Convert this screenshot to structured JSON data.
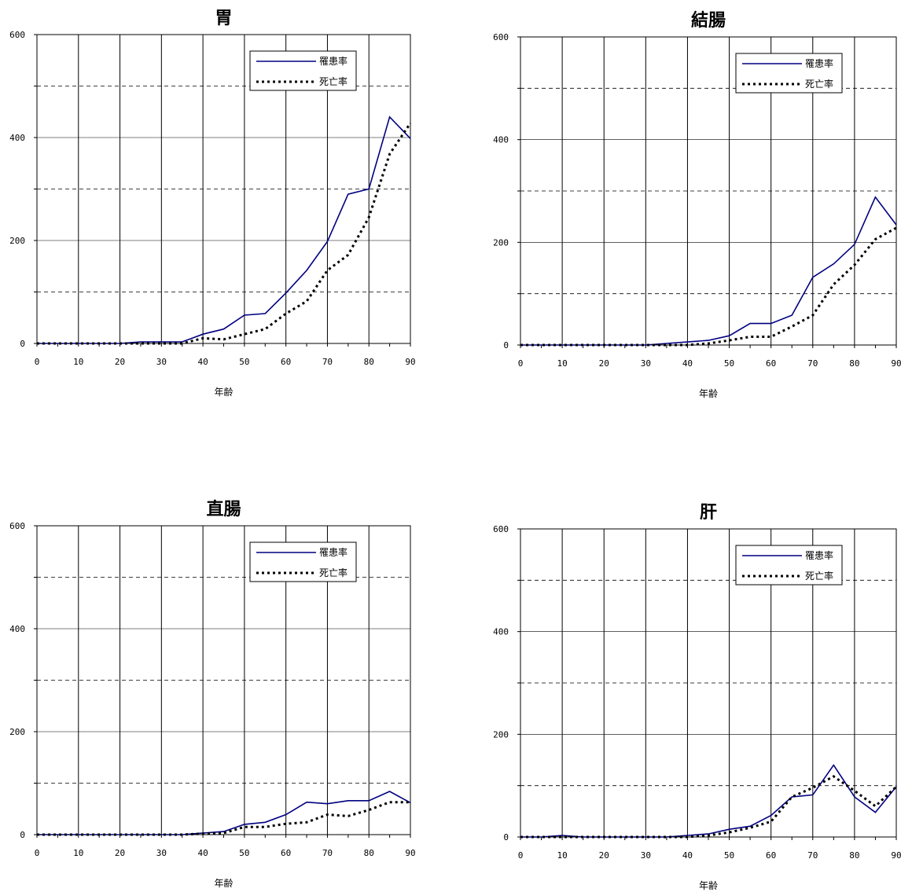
{
  "chart_data": [
    {
      "type": "line",
      "title": "胃",
      "xlabel": "年齢",
      "ylabel": "",
      "xlim": [
        0,
        90
      ],
      "ylim": [
        0,
        600
      ],
      "x_ticks": [
        "0",
        "10",
        "20",
        "30",
        "40",
        "50",
        "60",
        "70",
        "80",
        "90"
      ],
      "y_ticks": [
        "0",
        "200",
        "400",
        "600"
      ],
      "grid": true,
      "legend_position": "top-right",
      "series": [
        {
          "name": "罹患率",
          "style": "solid",
          "color": "#000080",
          "x": [
            0,
            5,
            10,
            15,
            20,
            25,
            30,
            35,
            40,
            45,
            50,
            55,
            60,
            65,
            70,
            75,
            80,
            85,
            90
          ],
          "y": [
            0,
            0,
            0,
            0,
            0,
            3,
            3,
            3,
            18,
            28,
            55,
            58,
            98,
            142,
            198,
            290,
            300,
            440,
            398
          ]
        },
        {
          "name": "死亡率",
          "style": "dotted",
          "color": "#000000",
          "x": [
            0,
            5,
            10,
            15,
            20,
            25,
            30,
            35,
            40,
            45,
            50,
            55,
            60,
            65,
            70,
            75,
            80,
            85,
            90
          ],
          "y": [
            0,
            0,
            0,
            0,
            0,
            0,
            0,
            0,
            10,
            8,
            18,
            28,
            58,
            82,
            142,
            172,
            245,
            368,
            428
          ]
        }
      ]
    },
    {
      "type": "line",
      "title": "結腸",
      "xlabel": "年齢",
      "ylabel": "",
      "xlim": [
        0,
        90
      ],
      "ylim": [
        0,
        600
      ],
      "x_ticks": [
        "0",
        "10",
        "20",
        "30",
        "40",
        "50",
        "60",
        "70",
        "80",
        "90"
      ],
      "y_ticks": [
        "0",
        "200",
        "400",
        "600"
      ],
      "grid": true,
      "legend_position": "top-right",
      "series": [
        {
          "name": "罹患率",
          "style": "solid",
          "color": "#000080",
          "x": [
            0,
            5,
            10,
            15,
            20,
            25,
            30,
            35,
            40,
            45,
            50,
            55,
            60,
            65,
            70,
            75,
            80,
            85,
            90
          ],
          "y": [
            0,
            0,
            0,
            0,
            0,
            0,
            0,
            3,
            6,
            9,
            18,
            42,
            42,
            58,
            132,
            158,
            196,
            288,
            234
          ]
        },
        {
          "name": "死亡率",
          "style": "dotted",
          "color": "#000000",
          "x": [
            0,
            5,
            10,
            15,
            20,
            25,
            30,
            35,
            40,
            45,
            50,
            55,
            60,
            65,
            70,
            75,
            80,
            85,
            90
          ],
          "y": [
            0,
            0,
            0,
            0,
            0,
            0,
            0,
            0,
            0,
            3,
            9,
            16,
            16,
            36,
            58,
            118,
            156,
            206,
            228
          ]
        }
      ]
    },
    {
      "type": "line",
      "title": "直腸",
      "xlabel": "年齢",
      "ylabel": "",
      "xlim": [
        0,
        90
      ],
      "ylim": [
        0,
        600
      ],
      "x_ticks": [
        "0",
        "10",
        "20",
        "30",
        "40",
        "50",
        "60",
        "70",
        "80",
        "90"
      ],
      "y_ticks": [
        "0",
        "200",
        "400",
        "600"
      ],
      "grid": true,
      "legend_position": "top-right",
      "series": [
        {
          "name": "罹患率",
          "style": "solid",
          "color": "#000080",
          "x": [
            0,
            5,
            10,
            15,
            20,
            25,
            30,
            35,
            40,
            45,
            50,
            55,
            60,
            65,
            70,
            75,
            80,
            85,
            90
          ],
          "y": [
            0,
            0,
            0,
            0,
            0,
            0,
            0,
            0,
            3,
            6,
            20,
            24,
            39,
            63,
            60,
            66,
            66,
            84,
            62
          ]
        },
        {
          "name": "死亡率",
          "style": "dotted",
          "color": "#000000",
          "x": [
            0,
            5,
            10,
            15,
            20,
            25,
            30,
            35,
            40,
            45,
            50,
            55,
            60,
            65,
            70,
            75,
            80,
            85,
            90
          ],
          "y": [
            0,
            0,
            0,
            0,
            0,
            0,
            0,
            0,
            2,
            3,
            15,
            15,
            21,
            24,
            39,
            36,
            48,
            63,
            63
          ]
        }
      ]
    },
    {
      "type": "line",
      "title": "肝",
      "xlabel": "年齢",
      "ylabel": "",
      "xlim": [
        0,
        90
      ],
      "ylim": [
        0,
        600
      ],
      "x_ticks": [
        "0",
        "10",
        "20",
        "30",
        "40",
        "50",
        "60",
        "70",
        "80",
        "90"
      ],
      "y_ticks": [
        "0",
        "200",
        "400",
        "600"
      ],
      "grid": true,
      "legend_position": "top-right",
      "series": [
        {
          "name": "罹患率",
          "style": "solid",
          "color": "#000080",
          "x": [
            0,
            5,
            10,
            15,
            20,
            25,
            30,
            35,
            40,
            45,
            50,
            55,
            60,
            65,
            70,
            75,
            80,
            85,
            90
          ],
          "y": [
            0,
            0,
            3,
            0,
            0,
            0,
            0,
            0,
            3,
            6,
            15,
            21,
            42,
            78,
            82,
            140,
            78,
            48,
            98
          ]
        },
        {
          "name": "死亡率",
          "style": "dotted",
          "color": "#000000",
          "x": [
            0,
            5,
            10,
            15,
            20,
            25,
            30,
            35,
            40,
            45,
            50,
            55,
            60,
            65,
            70,
            75,
            80,
            85,
            90
          ],
          "y": [
            0,
            0,
            0,
            0,
            0,
            0,
            0,
            0,
            0,
            3,
            9,
            18,
            30,
            78,
            96,
            118,
            90,
            60,
            98
          ]
        }
      ]
    }
  ]
}
